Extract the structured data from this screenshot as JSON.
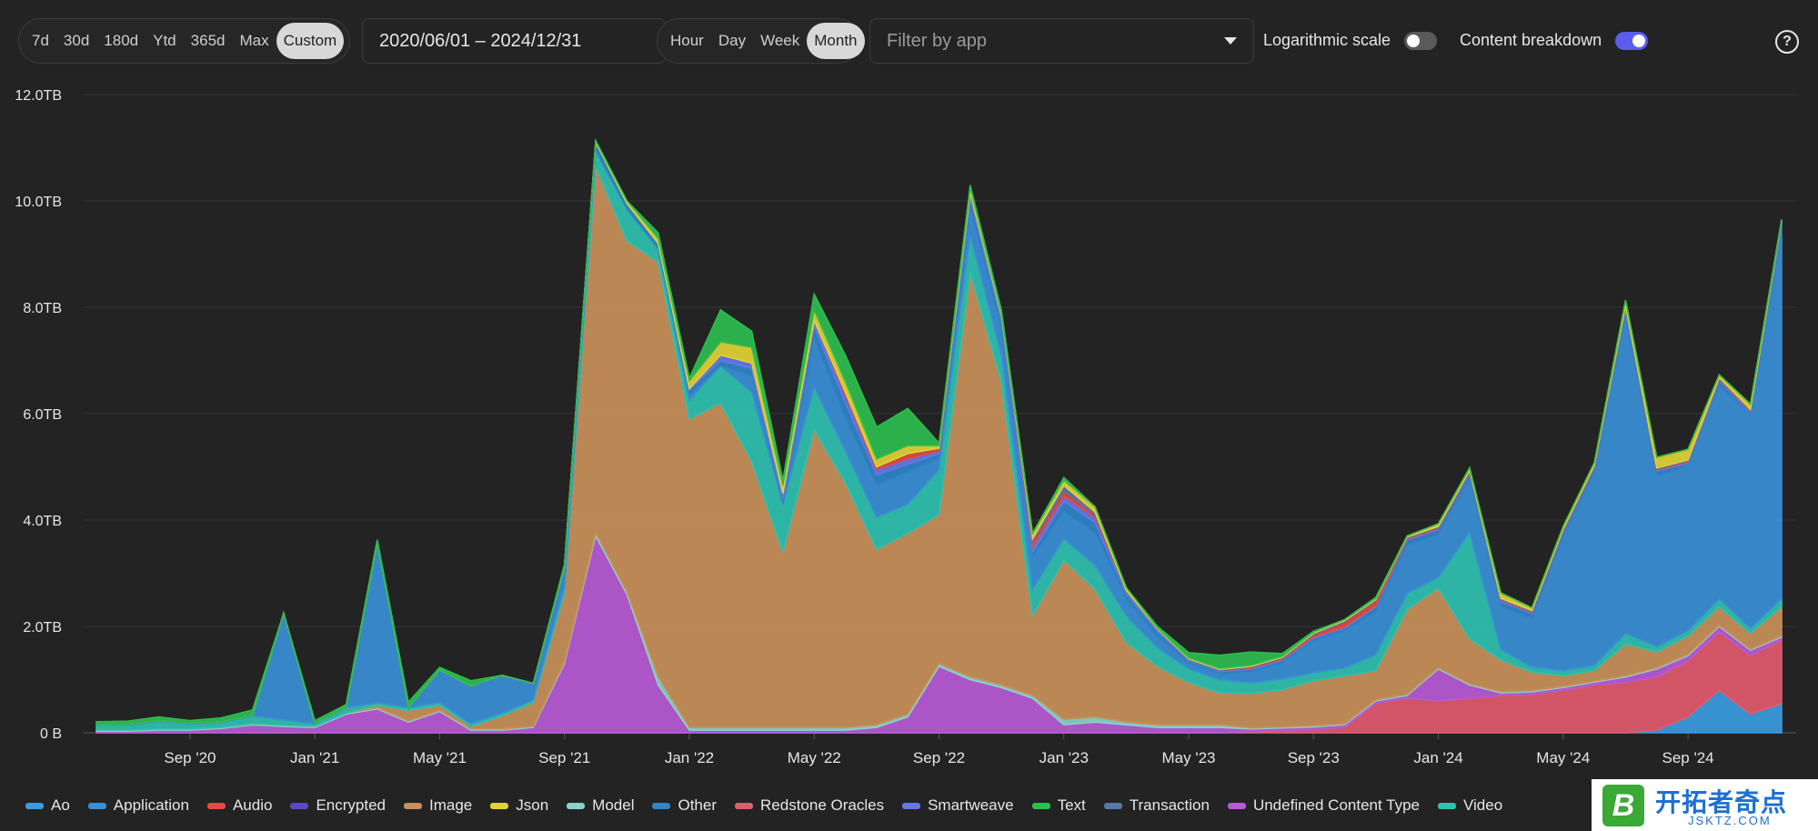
{
  "toolbar": {
    "ranges": [
      "7d",
      "30d",
      "180d",
      "Ytd",
      "365d",
      "Max",
      "Custom"
    ],
    "active_range": "Custom",
    "date_range": "2020/06/01 – 2024/12/31",
    "intervals": [
      "Hour",
      "Day",
      "Week",
      "Month"
    ],
    "active_interval": "Month",
    "filter_placeholder": "Filter by app",
    "log_scale_label": "Logarithmic scale",
    "log_scale_on": false,
    "breakdown_label": "Content breakdown",
    "breakdown_on": true,
    "help_symbol": "?",
    "toggle_on_color": "#5a5df0",
    "toggle_off_color": "#5a5a5a"
  },
  "chart_data": {
    "type": "area",
    "stacked": true,
    "x": [
      "2020-06",
      "2020-07",
      "2020-08",
      "2020-09",
      "2020-10",
      "2020-11",
      "2020-12",
      "2021-01",
      "2021-02",
      "2021-03",
      "2021-04",
      "2021-05",
      "2021-06",
      "2021-07",
      "2021-08",
      "2021-09",
      "2021-10",
      "2021-11",
      "2021-12",
      "2022-01",
      "2022-02",
      "2022-03",
      "2022-04",
      "2022-05",
      "2022-06",
      "2022-07",
      "2022-08",
      "2022-09",
      "2022-10",
      "2022-11",
      "2022-12",
      "2023-01",
      "2023-02",
      "2023-03",
      "2023-04",
      "2023-05",
      "2023-06",
      "2023-07",
      "2023-08",
      "2023-09",
      "2023-10",
      "2023-11",
      "2023-12",
      "2024-01",
      "2024-02",
      "2024-03",
      "2024-04",
      "2024-05",
      "2024-06",
      "2024-07",
      "2024-08",
      "2024-09",
      "2024-10",
      "2024-11",
      "2024-12"
    ],
    "x_tick_labels": [
      "Sep '20",
      "Jan '21",
      "May '21",
      "Sep '21",
      "Jan '22",
      "May '22",
      "Sep '22",
      "Jan '23",
      "May '23",
      "Sep '23",
      "Jan '24",
      "May '24",
      "Sep '24"
    ],
    "x_tick_months": [
      "2020-09",
      "2021-01",
      "2021-05",
      "2021-09",
      "2022-01",
      "2022-05",
      "2022-09",
      "2023-01",
      "2023-05",
      "2023-09",
      "2024-01",
      "2024-05",
      "2024-09"
    ],
    "y_unit": "TB",
    "y_ticks": [
      0,
      2,
      4,
      6,
      8,
      10,
      12
    ],
    "y_tick_labels": [
      "0 B",
      "2.0TB",
      "4.0TB",
      "6.0TB",
      "8.0TB",
      "10.0TB",
      "12.0TB"
    ],
    "ylim": [
      0,
      12
    ],
    "grid": true,
    "legend_position": "bottom-left",
    "series": [
      {
        "name": "Ao",
        "color": "#3b9be0",
        "values": [
          0,
          0,
          0,
          0,
          0,
          0,
          0,
          0,
          0,
          0,
          0,
          0,
          0,
          0,
          0,
          0,
          0,
          0,
          0,
          0,
          0,
          0,
          0,
          0,
          0,
          0,
          0,
          0,
          0,
          0,
          0,
          0,
          0,
          0,
          0,
          0,
          0,
          0,
          0,
          0,
          0,
          0,
          0,
          0,
          0,
          0,
          0,
          0,
          0,
          0,
          0.05,
          0.3,
          0.8,
          0.35,
          0.55
        ]
      },
      {
        "name": "Redstone Oracles",
        "color": "#e25a6e",
        "values": [
          0,
          0,
          0,
          0,
          0,
          0,
          0,
          0,
          0,
          0,
          0,
          0,
          0,
          0,
          0,
          0,
          0,
          0,
          0,
          0,
          0,
          0,
          0,
          0,
          0,
          0,
          0,
          0,
          0,
          0,
          0,
          0,
          0,
          0,
          0,
          0,
          0,
          0.02,
          0.04,
          0.06,
          0.1,
          0.55,
          0.65,
          0.6,
          0.65,
          0.7,
          0.72,
          0.8,
          0.9,
          0.95,
          1.0,
          1.05,
          1.1,
          1.1,
          1.2
        ]
      },
      {
        "name": "Undefined Content Type",
        "color": "#b75ad6",
        "values": [
          0.03,
          0.03,
          0.05,
          0.05,
          0.08,
          0.15,
          0.12,
          0.1,
          0.35,
          0.45,
          0.2,
          0.4,
          0.05,
          0.05,
          0.1,
          1.3,
          3.7,
          2.6,
          0.9,
          0.05,
          0.05,
          0.05,
          0.05,
          0.05,
          0.05,
          0.1,
          0.3,
          1.25,
          1.0,
          0.85,
          0.65,
          0.15,
          0.2,
          0.15,
          0.1,
          0.1,
          0.1,
          0.05,
          0.05,
          0.05,
          0.05,
          0.05,
          0.05,
          0.6,
          0.25,
          0.05,
          0.05,
          0.05,
          0.05,
          0.1,
          0.15,
          0.1,
          0.1,
          0.1,
          0.05
        ]
      },
      {
        "name": "Model",
        "color": "#8ad2c9",
        "values": [
          0.02,
          0.02,
          0.02,
          0.02,
          0.02,
          0.02,
          0.02,
          0.02,
          0.02,
          0.02,
          0.02,
          0.02,
          0.02,
          0.02,
          0.02,
          0.03,
          0.05,
          0.05,
          0.15,
          0.05,
          0.05,
          0.05,
          0.05,
          0.05,
          0.05,
          0.05,
          0.05,
          0.05,
          0.05,
          0.05,
          0.05,
          0.1,
          0.1,
          0.05,
          0.05,
          0.05,
          0.05,
          0.02,
          0.02,
          0.02,
          0.02,
          0.02,
          0.02,
          0.02,
          0.02,
          0.02,
          0.02,
          0.02,
          0.02,
          0.02,
          0.02,
          0.02,
          0.02,
          0.02,
          0.02
        ]
      },
      {
        "name": "Image",
        "color": "#c99059",
        "values": [
          0,
          0,
          0,
          0,
          0,
          0,
          0,
          0,
          0,
          0.05,
          0.2,
          0.1,
          0.05,
          0.25,
          0.45,
          1.3,
          6.9,
          6.6,
          7.8,
          5.8,
          6.1,
          5.0,
          3.3,
          5.6,
          4.6,
          3.3,
          3.4,
          2.8,
          7.6,
          5.7,
          1.5,
          3.0,
          2.4,
          1.5,
          1.1,
          0.8,
          0.6,
          0.65,
          0.7,
          0.85,
          0.9,
          0.55,
          1.6,
          1.5,
          0.85,
          0.6,
          0.35,
          0.2,
          0.2,
          0.6,
          0.3,
          0.35,
          0.35,
          0.3,
          0.55
        ]
      },
      {
        "name": "Video",
        "color": "#2fc1b0",
        "values": [
          0.1,
          0.1,
          0.15,
          0.1,
          0.1,
          0.15,
          0.1,
          0.05,
          0.1,
          0.05,
          0.05,
          0.05,
          0.05,
          0.05,
          0.05,
          0.1,
          0.3,
          0.6,
          0.25,
          0.35,
          0.7,
          1.3,
          0.9,
          0.8,
          0.6,
          0.6,
          0.55,
          0.85,
          0.7,
          0.5,
          0.5,
          0.4,
          0.45,
          0.5,
          0.35,
          0.25,
          0.25,
          0.2,
          0.2,
          0.15,
          0.15,
          0.3,
          0.3,
          0.2,
          2.0,
          0.2,
          0.1,
          0.1,
          0.1,
          0.2,
          0.1,
          0.1,
          0.15,
          0.1,
          0.15
        ]
      },
      {
        "name": "Application",
        "color": "#3a8fd6",
        "values": [
          0,
          0,
          0,
          0,
          0,
          0,
          2.0,
          0,
          0,
          3.0,
          0,
          0.6,
          0.7,
          0.7,
          0.3,
          0.3,
          0,
          0,
          0,
          0.1,
          0,
          0.3,
          0,
          0.9,
          0.6,
          0.6,
          0.6,
          0.2,
          0.5,
          0.5,
          0.6,
          0.5,
          0.6,
          0.3,
          0.2,
          0.1,
          0.1,
          0.2,
          0.3,
          0.6,
          0.7,
          0.8,
          0.9,
          0.8,
          1.0,
          0.8,
          0.9,
          2.5,
          3.6,
          6.0,
          3.2,
          3.1,
          4.0,
          4.0,
          7.0
        ]
      },
      {
        "name": "Other",
        "color": "#2f85c8",
        "values": [
          0.01,
          0.01,
          0.01,
          0.01,
          0.01,
          0.01,
          0.01,
          0.01,
          0.01,
          0.01,
          0.01,
          0.01,
          0.01,
          0.01,
          0.01,
          0.1,
          0.15,
          0.1,
          0.1,
          0.1,
          0.1,
          0.15,
          0.1,
          0.25,
          0.3,
          0.2,
          0.15,
          0.1,
          0.2,
          0.15,
          0.1,
          0.2,
          0.2,
          0.1,
          0.1,
          0.05,
          0.05,
          0.05,
          0.05,
          0.05,
          0.05,
          0.1,
          0.1,
          0.1,
          0.1,
          0.1,
          0.1,
          0.1,
          0.1,
          0.1,
          0.1,
          0.05,
          0.1,
          0.05,
          0.05
        ]
      },
      {
        "name": "Smartweave",
        "color": "#6677e8",
        "values": [
          0,
          0,
          0,
          0,
          0,
          0,
          0,
          0,
          0,
          0,
          0,
          0,
          0,
          0,
          0,
          0,
          0,
          0,
          0,
          0.02,
          0.1,
          0.1,
          0.1,
          0.1,
          0.15,
          0.1,
          0.1,
          0.05,
          0.1,
          0.1,
          0.1,
          0.1,
          0.1,
          0.05,
          0.03,
          0.02,
          0.02,
          0.02,
          0.02,
          0.02,
          0.02,
          0.02,
          0.02,
          0.02,
          0.02,
          0.02,
          0.02,
          0.02,
          0.02,
          0.02,
          0.02,
          0.02,
          0.02,
          0.02,
          0.02
        ]
      },
      {
        "name": "Audio",
        "color": "#e24a42",
        "values": [
          0,
          0,
          0,
          0,
          0,
          0,
          0,
          0,
          0,
          0,
          0,
          0,
          0,
          0,
          0,
          0,
          0,
          0,
          0,
          0,
          0,
          0,
          0,
          0,
          0.05,
          0.05,
          0.1,
          0.05,
          0,
          0,
          0.1,
          0.1,
          0.05,
          0,
          0,
          0,
          0,
          0.02,
          0.02,
          0.05,
          0.1,
          0.1,
          0.02,
          0.02,
          0.02,
          0.02,
          0.02,
          0.02,
          0.02,
          0.02,
          0.02,
          0.02,
          0.02,
          0.02,
          0.02
        ]
      },
      {
        "name": "Encrypted",
        "color": "#5c49c0",
        "values": [
          0,
          0,
          0,
          0,
          0,
          0,
          0,
          0,
          0,
          0,
          0,
          0,
          0,
          0,
          0,
          0,
          0,
          0,
          0,
          0,
          0,
          0,
          0,
          0,
          0,
          0,
          0,
          0,
          0,
          0,
          0,
          0,
          0,
          0,
          0,
          0,
          0,
          0,
          0,
          0,
          0,
          0,
          0,
          0,
          0,
          0,
          0,
          0,
          0,
          0,
          0,
          0,
          0,
          0,
          0
        ]
      },
      {
        "name": "Transaction",
        "color": "#5877a8",
        "values": [
          0,
          0,
          0,
          0,
          0,
          0,
          0,
          0,
          0,
          0,
          0,
          0,
          0,
          0,
          0,
          0,
          0,
          0,
          0,
          0,
          0,
          0,
          0,
          0,
          0,
          0,
          0,
          0,
          0,
          0,
          0.05,
          0.1,
          0.05,
          0.03,
          0.02,
          0.02,
          0.02,
          0.02,
          0.02,
          0.02,
          0.02,
          0.02,
          0.02,
          0.02,
          0.02,
          0.02,
          0.02,
          0.02,
          0.02,
          0.02,
          0.02,
          0.02,
          0.02,
          0.02,
          0.02
        ]
      },
      {
        "name": "Json",
        "color": "#e2d234",
        "values": [
          0,
          0,
          0,
          0,
          0,
          0,
          0,
          0,
          0,
          0,
          0,
          0,
          0,
          0,
          0,
          0.02,
          0.03,
          0.05,
          0.1,
          0.15,
          0.25,
          0.3,
          0.15,
          0.2,
          0.2,
          0.15,
          0.15,
          0.05,
          0.1,
          0.05,
          0.1,
          0.1,
          0.1,
          0.05,
          0.02,
          0.02,
          0.02,
          0.02,
          0.02,
          0.02,
          0.02,
          0.02,
          0.02,
          0.05,
          0.05,
          0.1,
          0.05,
          0.05,
          0.05,
          0.1,
          0.2,
          0.2,
          0.05,
          0.1,
          0.02
        ]
      },
      {
        "name": "Text",
        "color": "#2ebd4f",
        "values": [
          0.05,
          0.06,
          0.07,
          0.05,
          0.07,
          0.1,
          0,
          0.05,
          0.05,
          0.05,
          0.1,
          0.05,
          0.1,
          0,
          0,
          0.02,
          0,
          0,
          0.1,
          0.05,
          0.6,
          0.3,
          0.1,
          0.3,
          0.5,
          0.6,
          0.7,
          0.05,
          0.05,
          0.05,
          0,
          0.05,
          0,
          0,
          0.03,
          0.1,
          0.25,
          0.25,
          0.05,
          0.02,
          0,
          0.02,
          0,
          0,
          0,
          0,
          0,
          0,
          0,
          0,
          0,
          0,
          0,
          0,
          0
        ]
      }
    ]
  },
  "legend_order": [
    "Ao",
    "Application",
    "Audio",
    "Encrypted",
    "Image",
    "Json",
    "Model",
    "Other",
    "Redstone Oracles",
    "Smartweave",
    "Text",
    "Transaction",
    "Undefined Content Type",
    "Video"
  ],
  "watermark": {
    "logo_letter": "B",
    "title": "开拓者奇点",
    "subtitle": "JSKTZ.COM"
  }
}
